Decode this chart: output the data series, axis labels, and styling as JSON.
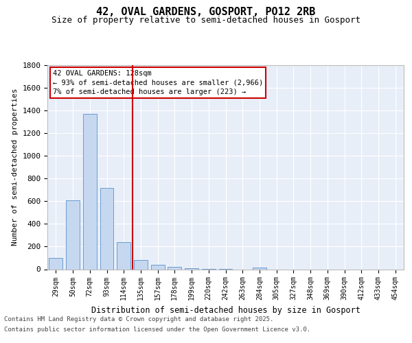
{
  "title_line1": "42, OVAL GARDENS, GOSPORT, PO12 2RB",
  "title_line2": "Size of property relative to semi-detached houses in Gosport",
  "xlabel": "Distribution of semi-detached houses by size in Gosport",
  "ylabel": "Number of semi-detached properties",
  "categories": [
    "29sqm",
    "50sqm",
    "72sqm",
    "93sqm",
    "114sqm",
    "135sqm",
    "157sqm",
    "178sqm",
    "199sqm",
    "220sqm",
    "242sqm",
    "263sqm",
    "284sqm",
    "305sqm",
    "327sqm",
    "348sqm",
    "369sqm",
    "390sqm",
    "412sqm",
    "433sqm",
    "454sqm"
  ],
  "values": [
    100,
    610,
    1370,
    720,
    240,
    80,
    40,
    20,
    10,
    5,
    5,
    0,
    15,
    0,
    0,
    0,
    0,
    0,
    0,
    0,
    0
  ],
  "bar_color": "#c5d8f0",
  "bar_edge_color": "#5b8fc9",
  "vline_color": "#cc0000",
  "vline_x_index": 4,
  "box_text_line1": "42 OVAL GARDENS: 128sqm",
  "box_text_line2": "← 93% of semi-detached houses are smaller (2,966)",
  "box_text_line3": "7% of semi-detached houses are larger (223) →",
  "box_edge_color": "#cc0000",
  "ylim": [
    0,
    1800
  ],
  "yticks": [
    0,
    200,
    400,
    600,
    800,
    1000,
    1200,
    1400,
    1600,
    1800
  ],
  "bg_color": "#e8eef8",
  "grid_color": "#ffffff",
  "title_fontsize": 11,
  "subtitle_fontsize": 9,
  "footer_line1": "Contains HM Land Registry data © Crown copyright and database right 2025.",
  "footer_line2": "Contains public sector information licensed under the Open Government Licence v3.0."
}
